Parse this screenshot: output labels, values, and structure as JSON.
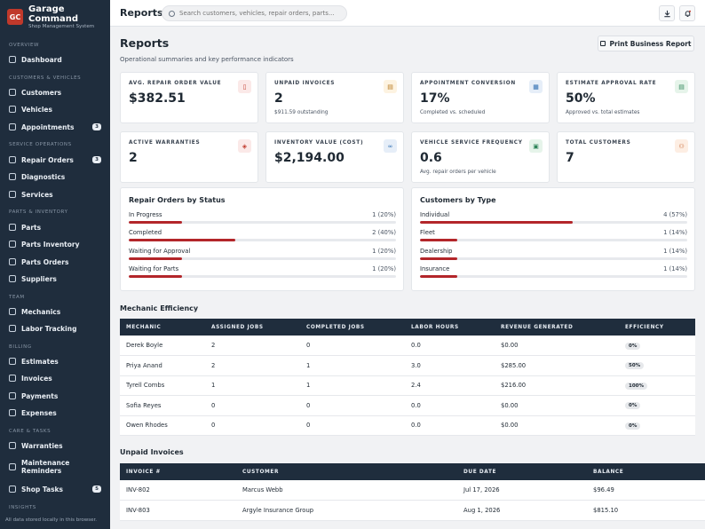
{
  "app": {
    "logo": "GC",
    "name": "Garage Command",
    "subtitle": "Shop Management System"
  },
  "sidebar": {
    "sections": {
      "overview": "OVERVIEW",
      "customers_vehicles": "CUSTOMERS & VEHICLES",
      "service_operations": "SERVICE OPERATIONS",
      "parts_inventory": "PARTS & INVENTORY",
      "team": "TEAM",
      "billing": "BILLING",
      "care_tasks": "CARE & TASKS",
      "insights": "INSIGHTS"
    },
    "items": {
      "dashboard": "Dashboard",
      "customers": "Customers",
      "vehicles": "Vehicles",
      "appointments": "Appointments",
      "appointments_badge": "3",
      "repair_orders": "Repair Orders",
      "repair_orders_badge": "3",
      "diagnostics": "Diagnostics",
      "services": "Services",
      "parts": "Parts",
      "parts_inventory": "Parts Inventory",
      "parts_orders": "Parts Orders",
      "suppliers": "Suppliers",
      "mechanics": "Mechanics",
      "labor_tracking": "Labor Tracking",
      "estimates": "Estimates",
      "invoices": "Invoices",
      "payments": "Payments",
      "expenses": "Expenses",
      "warranties": "Warranties",
      "maintenance_line1": "Maintenance",
      "maintenance_line2": "Reminders",
      "shop_tasks": "Shop Tasks",
      "shop_tasks_badge": "5"
    },
    "footer": "All data stored locally in this browser."
  },
  "topbar": {
    "title": "Reports",
    "search_placeholder": "Search customers, vehicles, repair orders, parts...",
    "download_icon": "download-icon",
    "notification_icon": "bell-icon"
  },
  "page": {
    "title": "Reports",
    "subtitle": "Operational summaries and key performance indicators",
    "print_button": "Print Business Report"
  },
  "kpis": [
    {
      "label": "AVG. REPAIR ORDER VALUE",
      "value": "$382.51",
      "note": "",
      "icon": "receipt-icon",
      "color": "#c0392b",
      "bg": "#fbe9e8"
    },
    {
      "label": "UNPAID INVOICES",
      "value": "2",
      "note": "$911.59 outstanding",
      "icon": "invoice-icon",
      "color": "#b7791f",
      "bg": "#fdf3e1"
    },
    {
      "label": "APPOINTMENT CONVERSION",
      "value": "17%",
      "note": "Completed vs. scheduled",
      "icon": "calendar-icon",
      "color": "#2b6cb0",
      "bg": "#e6eef8"
    },
    {
      "label": "ESTIMATE APPROVAL RATE",
      "value": "50%",
      "note": "Approved vs. total estimates",
      "icon": "document-icon",
      "color": "#2f855a",
      "bg": "#e6f4ea"
    },
    {
      "label": "ACTIVE WARRANTIES",
      "value": "2",
      "note": "",
      "icon": "shield-icon",
      "color": "#c0392b",
      "bg": "#fbe9e8"
    },
    {
      "label": "INVENTORY VALUE (COST)",
      "value": "$2,194.00",
      "note": "",
      "icon": "link-icon",
      "color": "#2b6cb0",
      "bg": "#e6eef8"
    },
    {
      "label": "VEHICLE SERVICE FREQUENCY",
      "value": "0.6",
      "note": "Avg. repair orders per vehicle",
      "icon": "car-icon",
      "color": "#2f855a",
      "bg": "#e6f4ea"
    },
    {
      "label": "TOTAL CUSTOMERS",
      "value": "7",
      "note": "",
      "icon": "users-icon",
      "color": "#c05621",
      "bg": "#fdeee3"
    }
  ],
  "repair_orders_by_status": {
    "title": "Repair Orders by Status",
    "rows": [
      {
        "label": "In Progress",
        "value": "1 (20%)",
        "pct": 20
      },
      {
        "label": "Completed",
        "value": "2 (40%)",
        "pct": 40
      },
      {
        "label": "Waiting for Approval",
        "value": "1 (20%)",
        "pct": 20
      },
      {
        "label": "Waiting for Parts",
        "value": "1 (20%)",
        "pct": 20
      }
    ]
  },
  "customers_by_type": {
    "title": "Customers by Type",
    "rows": [
      {
        "label": "Individual",
        "value": "4 (57%)",
        "pct": 57
      },
      {
        "label": "Fleet",
        "value": "1 (14%)",
        "pct": 14
      },
      {
        "label": "Dealership",
        "value": "1 (14%)",
        "pct": 14
      },
      {
        "label": "Insurance",
        "value": "1 (14%)",
        "pct": 14
      }
    ]
  },
  "mechanic_efficiency": {
    "title": "Mechanic Efficiency",
    "columns": [
      "MECHANIC",
      "ASSIGNED JOBS",
      "COMPLETED JOBS",
      "LABOR HOURS",
      "REVENUE GENERATED",
      "EFFICIENCY"
    ],
    "rows": [
      [
        "Derek Boyle",
        "2",
        "0",
        "0.0",
        "$0.00",
        "0%"
      ],
      [
        "Priya Anand",
        "2",
        "1",
        "3.0",
        "$285.00",
        "50%"
      ],
      [
        "Tyrell Combs",
        "1",
        "1",
        "2.4",
        "$216.00",
        "100%"
      ],
      [
        "Sofia Reyes",
        "0",
        "0",
        "0.0",
        "$0.00",
        "0%"
      ],
      [
        "Owen Rhodes",
        "0",
        "0",
        "0.0",
        "$0.00",
        "0%"
      ]
    ]
  },
  "unpaid_invoices": {
    "title": "Unpaid Invoices",
    "columns": [
      "INVOICE #",
      "CUSTOMER",
      "DUE DATE",
      "BALANCE"
    ],
    "rows": [
      [
        "INV-802",
        "Marcus Webb",
        "Jul 17, 2026",
        "$96.49"
      ],
      [
        "INV-803",
        "Argyle Insurance Group",
        "Aug 1, 2026",
        "$815.10"
      ]
    ]
  }
}
